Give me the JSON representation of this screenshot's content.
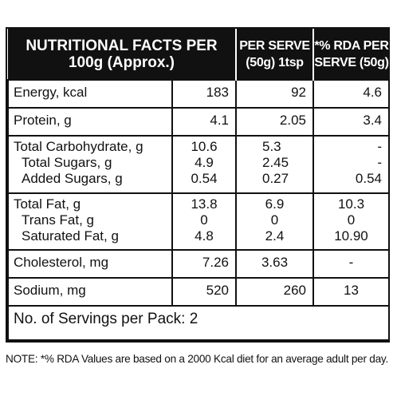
{
  "header": {
    "col1": "NUTRITIONAL FACTS PER 100g (Approx.)",
    "col2": "PER SERVE (50g) 1tsp",
    "col3": "*% RDA PER SERVE (50g)"
  },
  "rows": [
    {
      "name": "Energy, kcal",
      "per100": "183",
      "serve": "92",
      "rda": "4.6"
    },
    {
      "name": "Protein, g",
      "per100": "4.1",
      "serve": "2.05",
      "rda": "3.4"
    },
    {
      "name": "Total Carbohydrate, g",
      "per100": "10.6",
      "serve": "5.3",
      "rda": "-"
    },
    {
      "name": "Total Sugars, g",
      "per100": "4.9",
      "serve": "2.45",
      "rda": "-"
    },
    {
      "name": "Added Sugars, g",
      "per100": "0.54",
      "serve": "0.27",
      "rda": "0.54"
    },
    {
      "name": "Total Fat, g",
      "per100": "13.8",
      "serve": "6.9",
      "rda": "10.3"
    },
    {
      "name": "Trans Fat, g",
      "per100": "0",
      "serve": "0",
      "rda": "0"
    },
    {
      "name": "Saturated Fat, g",
      "per100": "4.8",
      "serve": "2.4",
      "rda": "10.90"
    },
    {
      "name": "Cholesterol, mg",
      "per100": "7.26",
      "serve": "3.63",
      "rda": "-"
    },
    {
      "name": "Sodium, mg",
      "per100": "520",
      "serve": "260",
      "rda": "13"
    }
  ],
  "servings": "No. of Servings per Pack: 2",
  "note": "NOTE: *% RDA Values are based on a 2000 Kcal diet for an average adult per day."
}
